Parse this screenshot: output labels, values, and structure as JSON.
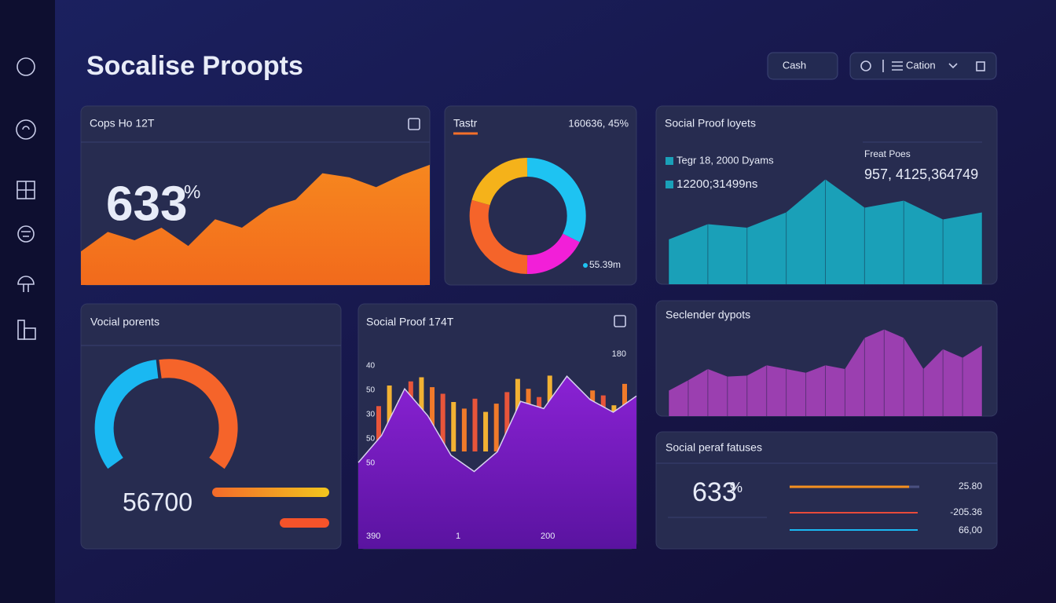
{
  "header": {
    "title": "Socalise Proopts",
    "buttons": [
      "Cash",
      "Cation"
    ]
  },
  "cards": [
    {
      "title": "Cops Ho 12T",
      "big_value": "633",
      "big_unit": "%",
      "chart": {
        "type": "area",
        "color": "#f5801f",
        "ylim": [
          0,
          100
        ],
        "values": [
          24,
          38,
          32,
          41,
          28,
          47,
          41,
          55,
          61,
          80,
          77,
          70,
          79,
          86
        ]
      }
    },
    {
      "title": "Tastr",
      "stat": "160636, 45%",
      "note": "55.39m"
    },
    {
      "title": "Social Proof loyets",
      "legend": [
        "Tegr 18, 2000 Dyams",
        "12200;31499ns"
      ],
      "stat_label": "Freat Poes",
      "stat": "957, 4125,364749",
      "chart": {
        "type": "area",
        "color": "#1aa0b8",
        "ylim": [
          0,
          100
        ],
        "values": [
          38,
          51,
          48,
          61,
          89,
          65,
          71,
          55,
          61
        ]
      }
    },
    {
      "title": "Vocial porents",
      "big_value": "56700"
    },
    {
      "title": "Social Proof 174T",
      "top_label": "180",
      "y_labels": [
        "40",
        "50",
        "30",
        "50",
        "50"
      ],
      "x_labels": [
        "390",
        "1",
        "200"
      ],
      "bars": {
        "type": "bar",
        "colors": [
          "#e8553a",
          "#f2b233",
          "#f07a2a"
        ],
        "ylim": [
          0,
          100
        ],
        "values": [
          55,
          80,
          62,
          85,
          90,
          78,
          70,
          60,
          52,
          64,
          48,
          58,
          72,
          88,
          76,
          66,
          92,
          70,
          84,
          60,
          74,
          68,
          56,
          82
        ]
      },
      "chart": {
        "type": "area",
        "color": "#7a1fc8",
        "ylim": [
          0,
          100
        ],
        "values": [
          48,
          63,
          89,
          74,
          52,
          43,
          54,
          82,
          78,
          96,
          83,
          76,
          85
        ]
      }
    },
    {
      "title": "Seclender dypots",
      "chart": {
        "type": "area",
        "color": "#9b3fb0",
        "ylim": [
          0,
          100
        ],
        "values": [
          27,
          38,
          50,
          42,
          43,
          54,
          50,
          46,
          54,
          50,
          83,
          92,
          83,
          50,
          71,
          62,
          75
        ]
      }
    },
    {
      "title": "Social peraf fatuses",
      "big_value": "633",
      "big_unit": "%",
      "rows": [
        "25.80",
        "-205.36",
        "66,00"
      ]
    }
  ]
}
